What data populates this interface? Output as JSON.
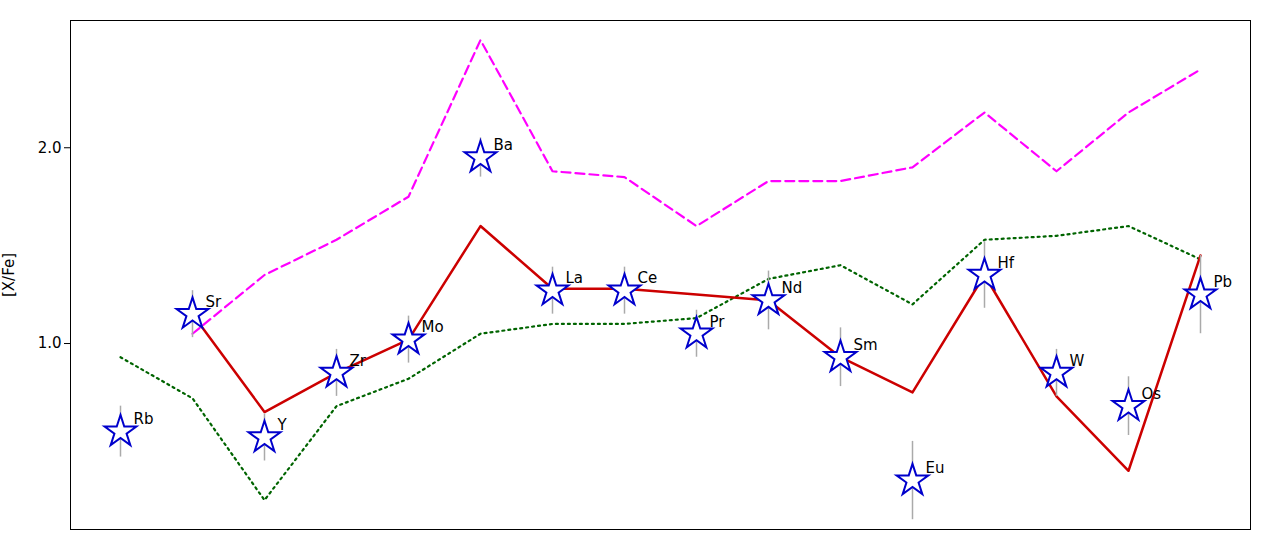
{
  "chart_data": {
    "type": "line",
    "categories": [
      "Rb",
      "Sr",
      "Y",
      "Zr",
      "Mo",
      "Ba",
      "La",
      "Ce",
      "Pr",
      "Nd",
      "Sm",
      "Eu",
      "Hf",
      "W",
      "Os",
      "Pb"
    ],
    "ylabel": "[X/Fe]",
    "ylim": [
      0.05,
      2.65
    ],
    "yticks": [
      1,
      2
    ],
    "tick_labels": "y",
    "grid": false,
    "series": [
      {
        "type": "line",
        "line_style": "dotted",
        "color": "#006400",
        "values": [
          0.93,
          0.72,
          0.2,
          0.68,
          0.82,
          1.05,
          1.1,
          1.1,
          1.13,
          1.33,
          1.4,
          1.2,
          1.53,
          1.55,
          1.6,
          1.43
        ]
      },
      {
        "type": "line",
        "line_style": "dashed",
        "color": "#ff00ff",
        "values": [
          null,
          1.05,
          1.35,
          1.53,
          1.75,
          2.55,
          1.88,
          1.85,
          1.6,
          1.83,
          1.83,
          1.9,
          2.18,
          1.88,
          2.18,
          2.4
        ]
      },
      {
        "type": "line",
        "line_style": "solid",
        "color": "#cc0000",
        "values": [
          null,
          1.15,
          0.65,
          0.85,
          1.02,
          1.6,
          1.28,
          1.28,
          1.25,
          1.22,
          0.93,
          0.75,
          1.35,
          0.73,
          0.35,
          1.45
        ]
      },
      {
        "type": "scatter",
        "marker": "star",
        "color": "#0000cc",
        "values": [
          0.55,
          1.15,
          0.52,
          0.85,
          1.02,
          1.95,
          1.27,
          1.27,
          1.05,
          1.22,
          0.93,
          0.3,
          1.35,
          0.85,
          0.68,
          1.25
        ],
        "errors": [
          0.13,
          0.12,
          0.12,
          0.12,
          0.12,
          0.1,
          0.12,
          0.12,
          0.12,
          0.15,
          0.15,
          0.2,
          0.17,
          0.12,
          0.15,
          0.2
        ]
      }
    ]
  }
}
